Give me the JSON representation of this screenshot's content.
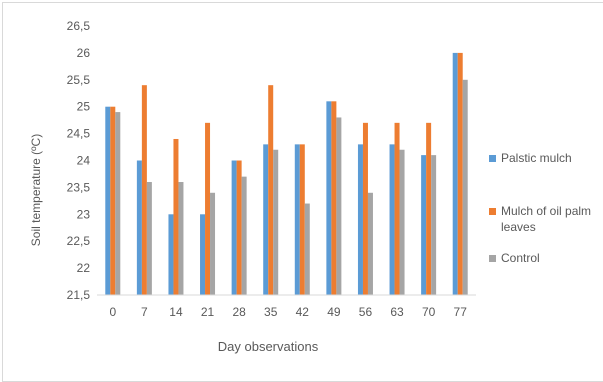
{
  "chart_data": {
    "type": "bar",
    "title": "",
    "xlabel": "Day observations",
    "ylabel": "Soil temperature (ºC)",
    "categories": [
      "0",
      "7",
      "14",
      "21",
      "28",
      "35",
      "42",
      "49",
      "56",
      "63",
      "70",
      "77"
    ],
    "ylim": [
      21.5,
      26.5
    ],
    "ytick_labels": [
      "21,5",
      "22",
      "22,5",
      "23",
      "23,5",
      "24",
      "24,5",
      "25",
      "25,5",
      "26",
      "26,5"
    ],
    "grid": false,
    "legend_position": "right",
    "series": [
      {
        "name": "Palstic mulch",
        "color": "#5b9bd5",
        "values": [
          25.0,
          24.0,
          23.0,
          23.0,
          24.0,
          24.3,
          24.3,
          25.1,
          24.3,
          24.3,
          24.1,
          26.0
        ]
      },
      {
        "name": "Mulch of oil palm leaves",
        "color": "#ed7d31",
        "values": [
          25.0,
          25.4,
          24.4,
          24.7,
          24.0,
          25.4,
          24.3,
          25.1,
          24.7,
          24.7,
          24.7,
          26.0
        ]
      },
      {
        "name": "Control",
        "color": "#a5a5a5",
        "values": [
          24.9,
          23.6,
          23.6,
          23.4,
          23.7,
          24.2,
          23.2,
          24.8,
          23.4,
          24.2,
          24.1,
          25.5
        ]
      }
    ]
  }
}
